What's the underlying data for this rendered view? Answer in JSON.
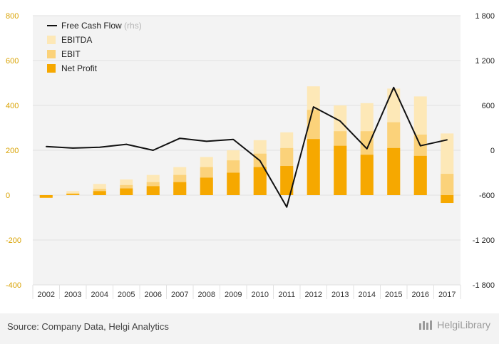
{
  "colors": {
    "ebitda": "#fde8b7",
    "ebit": "#fbd27a",
    "net_profit": "#f6a800",
    "fcf": "#111111",
    "plot_bg": "#f3f3f3",
    "left_axis": "#d9a200"
  },
  "chart_data": {
    "type": "bar",
    "stacked_overlay": true,
    "categories": [
      "2002",
      "2003",
      "2004",
      "2005",
      "2006",
      "2007",
      "2008",
      "2009",
      "2010",
      "2011",
      "2012",
      "2013",
      "2014",
      "2015",
      "2016",
      "2017"
    ],
    "series": [
      {
        "name": "EBITDA",
        "axis": "left",
        "values": [
          -5,
          18,
          50,
          70,
          90,
          125,
          170,
          200,
          245,
          280,
          485,
          400,
          410,
          475,
          440,
          275
        ]
      },
      {
        "name": "EBIT",
        "axis": "left",
        "values": [
          -10,
          8,
          28,
          45,
          58,
          90,
          125,
          155,
          185,
          210,
          380,
          285,
          285,
          325,
          270,
          95
        ]
      },
      {
        "name": "Net Profit",
        "axis": "left",
        "values": [
          -12,
          5,
          18,
          30,
          40,
          58,
          78,
          100,
          125,
          130,
          250,
          220,
          180,
          210,
          175,
          -35
        ]
      },
      {
        "name": "Free Cash Flow",
        "rhs_label": "(rhs)",
        "type": "line",
        "axis": "right",
        "values": [
          50,
          30,
          40,
          80,
          0,
          160,
          120,
          145,
          -140,
          -760,
          580,
          390,
          20,
          840,
          60,
          140
        ]
      }
    ],
    "y_left": {
      "min": -400,
      "max": 800,
      "ticks": [
        "800",
        "600",
        "400",
        "200",
        "0",
        "-200",
        "-400"
      ]
    },
    "y_right": {
      "min": -1800,
      "max": 1800,
      "ticks": [
        "1 800",
        "1 200",
        "600",
        "0",
        "-600",
        "-1 200",
        "-1 800"
      ]
    },
    "grid": true,
    "legend_position": "top-left"
  },
  "footer": {
    "source": "Source: Company Data, Helgi Analytics",
    "logo": "HelgiLibrary"
  }
}
